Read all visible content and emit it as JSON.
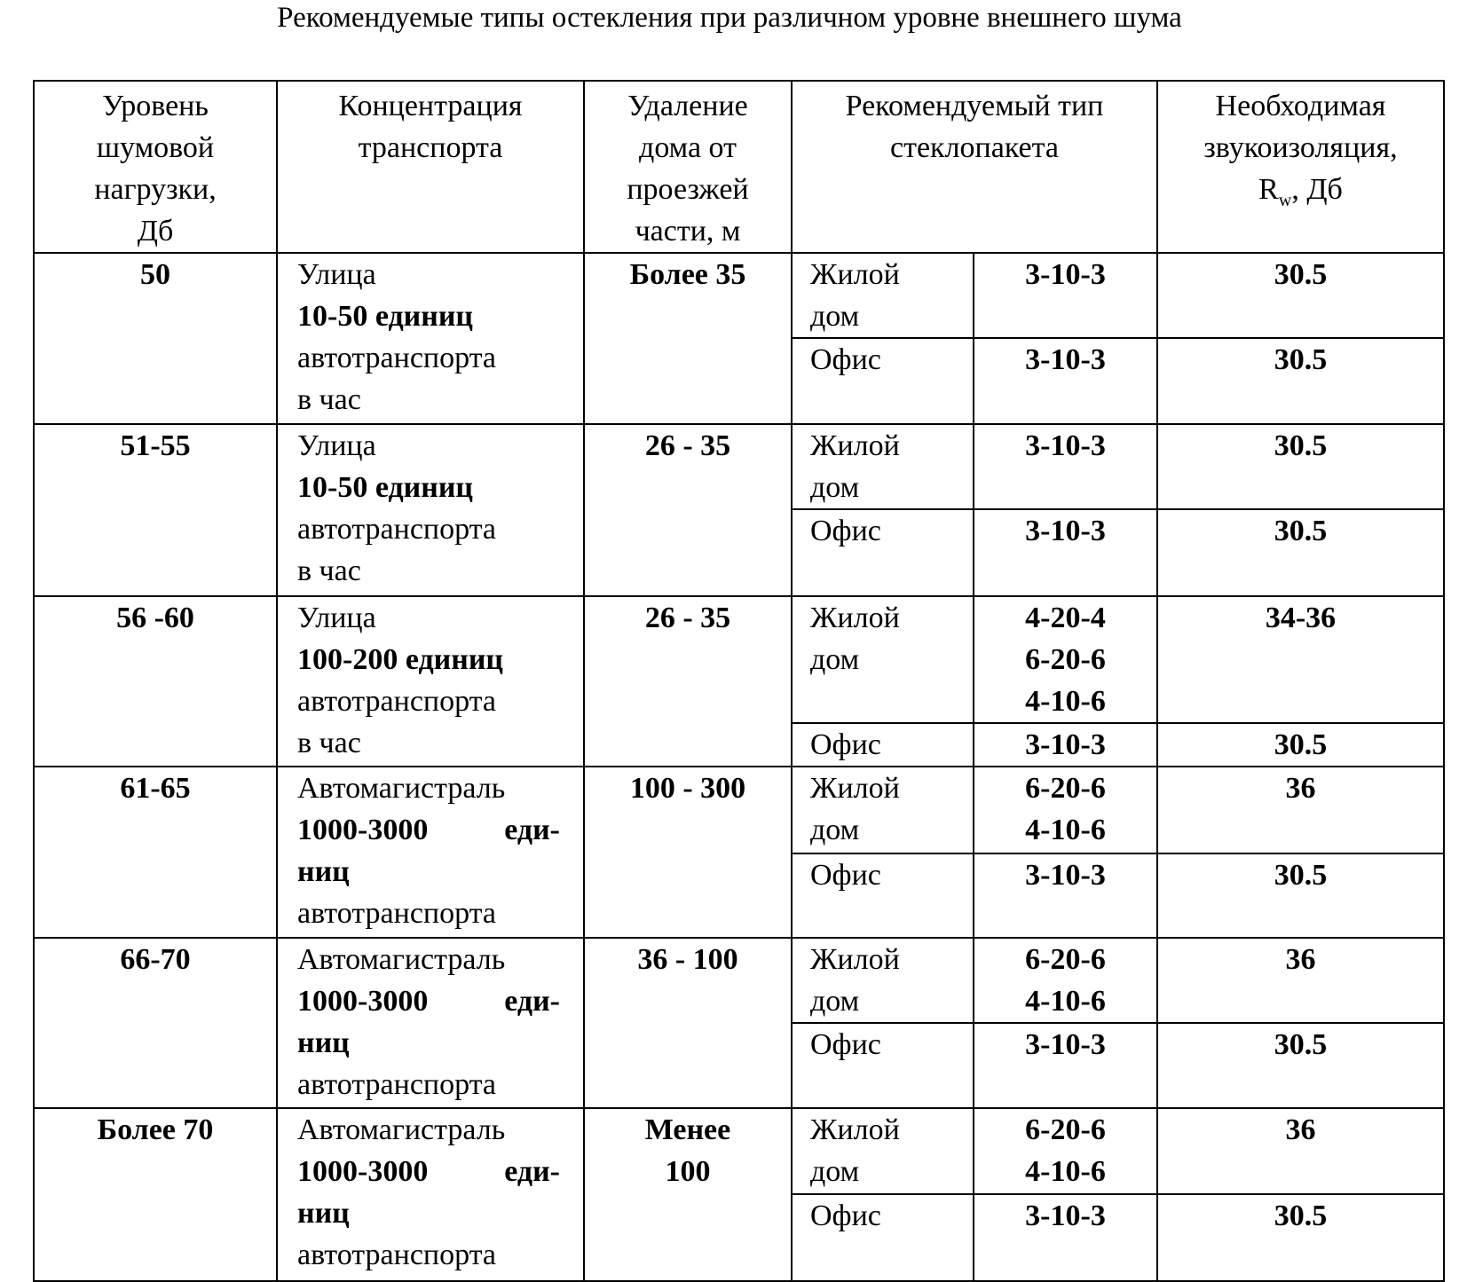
{
  "title": "Рекомендуемые типы остекления при различном уровне внешнего шума",
  "headers": {
    "noise": [
      "Уровень",
      "шумовой",
      "нагрузки,",
      "Дб"
    ],
    "traffic": [
      "Концентрация",
      "транспорта"
    ],
    "distance": [
      "Удаление",
      "дома от",
      "проезжей",
      "части, м"
    ],
    "glass": [
      "Рекомендуемый тип",
      "стеклопакета"
    ],
    "insulation": [
      "Необходимая",
      "звукоизоляция,"
    ],
    "insulation_r": "R",
    "insulation_sub": "w",
    "insulation_unit": ", Дб"
  },
  "rows": [
    {
      "noise": "50",
      "street": "Улица",
      "units": "10-50 единиц",
      "units2": "",
      "vehicles": "автотранспорта",
      "per_hour": "в час",
      "distance": [
        "Более 35"
      ],
      "sub": [
        {
          "type": [
            "Жилой",
            "дом"
          ],
          "glass": [
            "3-10-3"
          ],
          "rw": "30.5"
        },
        {
          "type": [
            "Офис"
          ],
          "glass": [
            "3-10-3"
          ],
          "rw": "30.5"
        }
      ]
    },
    {
      "noise": "51-55",
      "street": "Улица",
      "units": "10-50 единиц",
      "units2": "",
      "vehicles": "автотранспорта",
      "per_hour": "в час",
      "distance": [
        "26 - 35"
      ],
      "sub": [
        {
          "type": [
            "Жилой",
            "дом"
          ],
          "glass": [
            "3-10-3"
          ],
          "rw": "30.5"
        },
        {
          "type": [
            "Офис"
          ],
          "glass": [
            "3-10-3"
          ],
          "rw": "30.5"
        }
      ]
    },
    {
      "noise": "56 -60",
      "street": "Улица",
      "units": "100-200 единиц",
      "units2": "",
      "vehicles": "автотранспорта",
      "per_hour": "в час",
      "distance": [
        "26 - 35"
      ],
      "sub": [
        {
          "type": [
            "Жилой",
            "дом"
          ],
          "glass": [
            "4-20-4",
            "6-20-6",
            "4-10-6"
          ],
          "rw": "34-36"
        },
        {
          "type": [
            "Офис"
          ],
          "glass": [
            "3-10-3"
          ],
          "rw": "30.5"
        }
      ]
    },
    {
      "noise": "61-65",
      "street": "Автомагистраль",
      "units": "1000-3000",
      "units_b": "еди-",
      "units2": "ниц",
      "vehicles": "автотранспорта",
      "per_hour": "",
      "distance": [
        "100 - 300"
      ],
      "sub": [
        {
          "type": [
            "Жилой",
            "дом"
          ],
          "glass": [
            "6-20-6",
            "4-10-6"
          ],
          "rw": "36"
        },
        {
          "type": [
            "Офис"
          ],
          "glass": [
            "3-10-3"
          ],
          "rw": "30.5"
        }
      ]
    },
    {
      "noise": "66-70",
      "street": "Автомагистраль",
      "units": "1000-3000",
      "units_b": "еди-",
      "units2": "ниц",
      "vehicles": "автотранспорта",
      "per_hour": "",
      "distance": [
        "36 - 100"
      ],
      "sub": [
        {
          "type": [
            "Жилой",
            "дом"
          ],
          "glass": [
            "6-20-6",
            "4-10-6"
          ],
          "rw": "36"
        },
        {
          "type": [
            "Офис"
          ],
          "glass": [
            "3-10-3"
          ],
          "rw": "30.5"
        }
      ]
    },
    {
      "noise": "Более 70",
      "street": "Автомагистраль",
      "units": "1000-3000",
      "units_b": "еди-",
      "units2": "ниц",
      "vehicles": "автотранспорта",
      "per_hour": "",
      "distance": [
        "Менее",
        "100"
      ],
      "sub": [
        {
          "type": [
            "Жилой",
            "дом"
          ],
          "glass": [
            "6-20-6",
            "4-10-6"
          ],
          "rw": "36"
        },
        {
          "type": [
            "Офис"
          ],
          "glass": [
            "3-10-3"
          ],
          "rw": "30.5"
        }
      ]
    }
  ]
}
